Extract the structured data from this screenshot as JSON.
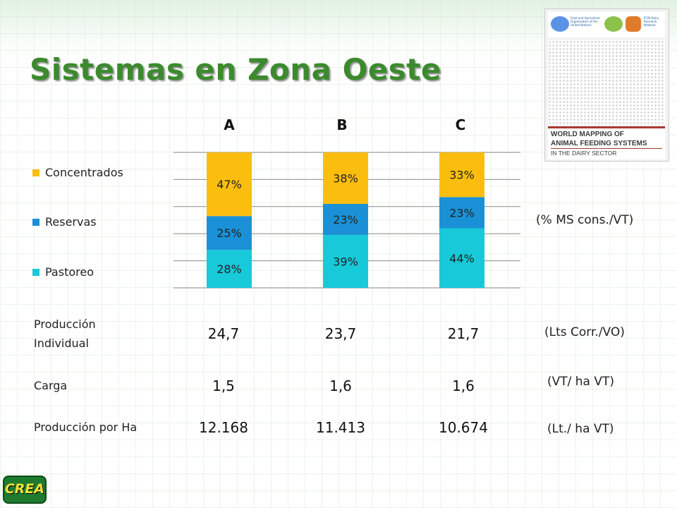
{
  "slide": {
    "title": "Sistemas en Zona Oeste"
  },
  "logo": {
    "fao_text": "Food and Agriculture Organization of the United Nations",
    "ifcn_text": "IFCN Dairy Research Network",
    "line1": "WORLD MAPPING OF",
    "line2": "ANIMAL FEEDING SYSTEMS",
    "line3": "IN THE DAIRY SECTOR"
  },
  "chart_data": {
    "type": "bar",
    "stacked": true,
    "categories": [
      "A",
      "B",
      "C"
    ],
    "series": [
      {
        "name": "Pastoreo",
        "values": [
          28,
          39,
          44
        ],
        "labels": [
          "28%",
          "39%",
          "44%"
        ],
        "color": "#17c9d9"
      },
      {
        "name": "Reservas",
        "values": [
          25,
          23,
          23
        ],
        "labels": [
          "25%",
          "23%",
          "23%"
        ],
        "color": "#1a91d6"
      },
      {
        "name": "Concentrados",
        "values": [
          47,
          38,
          33
        ],
        "labels": [
          "47%",
          "38%",
          "33%"
        ],
        "color": "#fbbe0f"
      }
    ],
    "legend_order": [
      "Concentrados",
      "Reservas",
      "Pastoreo"
    ],
    "legend_position": "left",
    "ylim": [
      0,
      100
    ],
    "grid": true,
    "unit_label": "(% MS cons./VT)"
  },
  "table": {
    "rows": [
      {
        "label": "Producción Individual",
        "values": [
          "24,7",
          "23,7",
          "21,7"
        ],
        "unit": "(Lts Corr./VO)"
      },
      {
        "label": "Carga",
        "values": [
          "1,5",
          "1,6",
          "1,6"
        ],
        "unit": "(VT/ ha VT)"
      },
      {
        "label": "Producción por Ha",
        "values": [
          "12.168",
          "11.413",
          "10.674"
        ],
        "unit": "(Lt./ ha VT)"
      }
    ]
  },
  "footer": {
    "logo_text": "CREA"
  }
}
